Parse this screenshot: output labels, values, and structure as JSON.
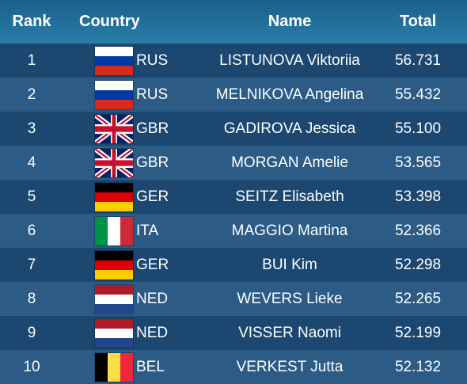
{
  "header": {
    "rank": "Rank",
    "country": "Country",
    "name": "Name",
    "total": "Total"
  },
  "flags": {
    "RUS": {
      "layout": "h3",
      "colors": [
        "#ffffff",
        "#0039a6",
        "#d52b1e"
      ]
    },
    "GBR": {
      "layout": "union-jack",
      "colors": [
        "#012169",
        "#ffffff",
        "#c8102e"
      ]
    },
    "GER": {
      "layout": "h3",
      "colors": [
        "#000000",
        "#dd0000",
        "#ffce00"
      ]
    },
    "ITA": {
      "layout": "v3",
      "colors": [
        "#009246",
        "#ffffff",
        "#ce2b37"
      ]
    },
    "NED": {
      "layout": "h3",
      "colors": [
        "#ae1c28",
        "#ffffff",
        "#21468b"
      ]
    },
    "BEL": {
      "layout": "v3",
      "colors": [
        "#000000",
        "#fae042",
        "#ed2939"
      ]
    }
  },
  "rows": [
    {
      "rank": "1",
      "country": "RUS",
      "name": "LISTUNOVA Viktoriia",
      "total": "56.731"
    },
    {
      "rank": "2",
      "country": "RUS",
      "name": "MELNIKOVA Angelina",
      "total": "55.432"
    },
    {
      "rank": "3",
      "country": "GBR",
      "name": "GADIROVA Jessica",
      "total": "55.100"
    },
    {
      "rank": "4",
      "country": "GBR",
      "name": "MORGAN Amelie",
      "total": "53.565"
    },
    {
      "rank": "5",
      "country": "GER",
      "name": "SEITZ Elisabeth",
      "total": "53.398"
    },
    {
      "rank": "6",
      "country": "ITA",
      "name": "MAGGIO Martina",
      "total": "52.366"
    },
    {
      "rank": "7",
      "country": "GER",
      "name": "BUI Kim",
      "total": "52.298"
    },
    {
      "rank": "8",
      "country": "NED",
      "name": "WEVERS Lieke",
      "total": "52.265"
    },
    {
      "rank": "9",
      "country": "NED",
      "name": "VISSER Naomi",
      "total": "52.199"
    },
    {
      "rank": "10",
      "country": "BEL",
      "name": "VERKEST Jutta",
      "total": "52.132"
    }
  ]
}
